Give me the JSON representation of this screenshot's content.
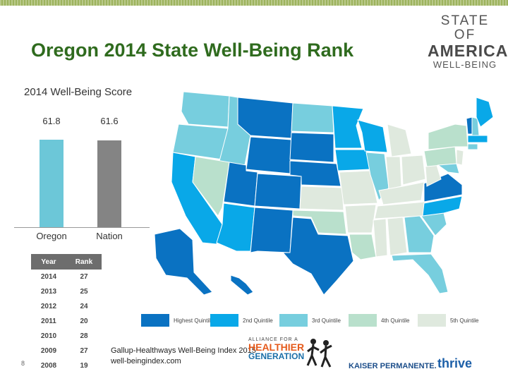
{
  "title": "Oregon 2014 State Well-Being Rank",
  "logo": {
    "line1": "STATE OF",
    "line2": "AMERICAN",
    "line3": "WELL-BEING"
  },
  "chart_data": {
    "type": "bar",
    "title": "2014 Well-Being Score",
    "categories": [
      "Oregon",
      "Nation"
    ],
    "values": [
      61.8,
      61.6
    ],
    "colors": [
      "#6cc7d8",
      "#848484"
    ],
    "ylim": [
      0,
      70
    ]
  },
  "rank_table": {
    "headers": [
      "Year",
      "Rank"
    ],
    "rows": [
      [
        "2014",
        "27"
      ],
      [
        "2013",
        "25"
      ],
      [
        "2012",
        "24"
      ],
      [
        "2011",
        "20"
      ],
      [
        "2010",
        "28"
      ],
      [
        "2009",
        "27"
      ],
      [
        "2008",
        "19"
      ]
    ]
  },
  "legend": [
    {
      "label": "Highest Quintile",
      "color": "#0a72c2"
    },
    {
      "label": "2nd Quintile",
      "color": "#09a8e8"
    },
    {
      "label": "3rd Quintile",
      "color": "#77cede"
    },
    {
      "label": "4th Quintile",
      "color": "#b9e0cc"
    },
    {
      "label": "5th Quintile",
      "color": "#dfe9de"
    }
  ],
  "source": {
    "line1": "Gallup-Healthways Well-Being Index 2015",
    "line2": "well-beingindex.com"
  },
  "page_number": "8",
  "partner_logos": {
    "hg_top": "ALLIANCE FOR A",
    "hg_mid": "HEALTHIER",
    "hg_bot": "GENERATION",
    "kp": "KAISER PERMANENTE.",
    "thrive": "thrive"
  }
}
